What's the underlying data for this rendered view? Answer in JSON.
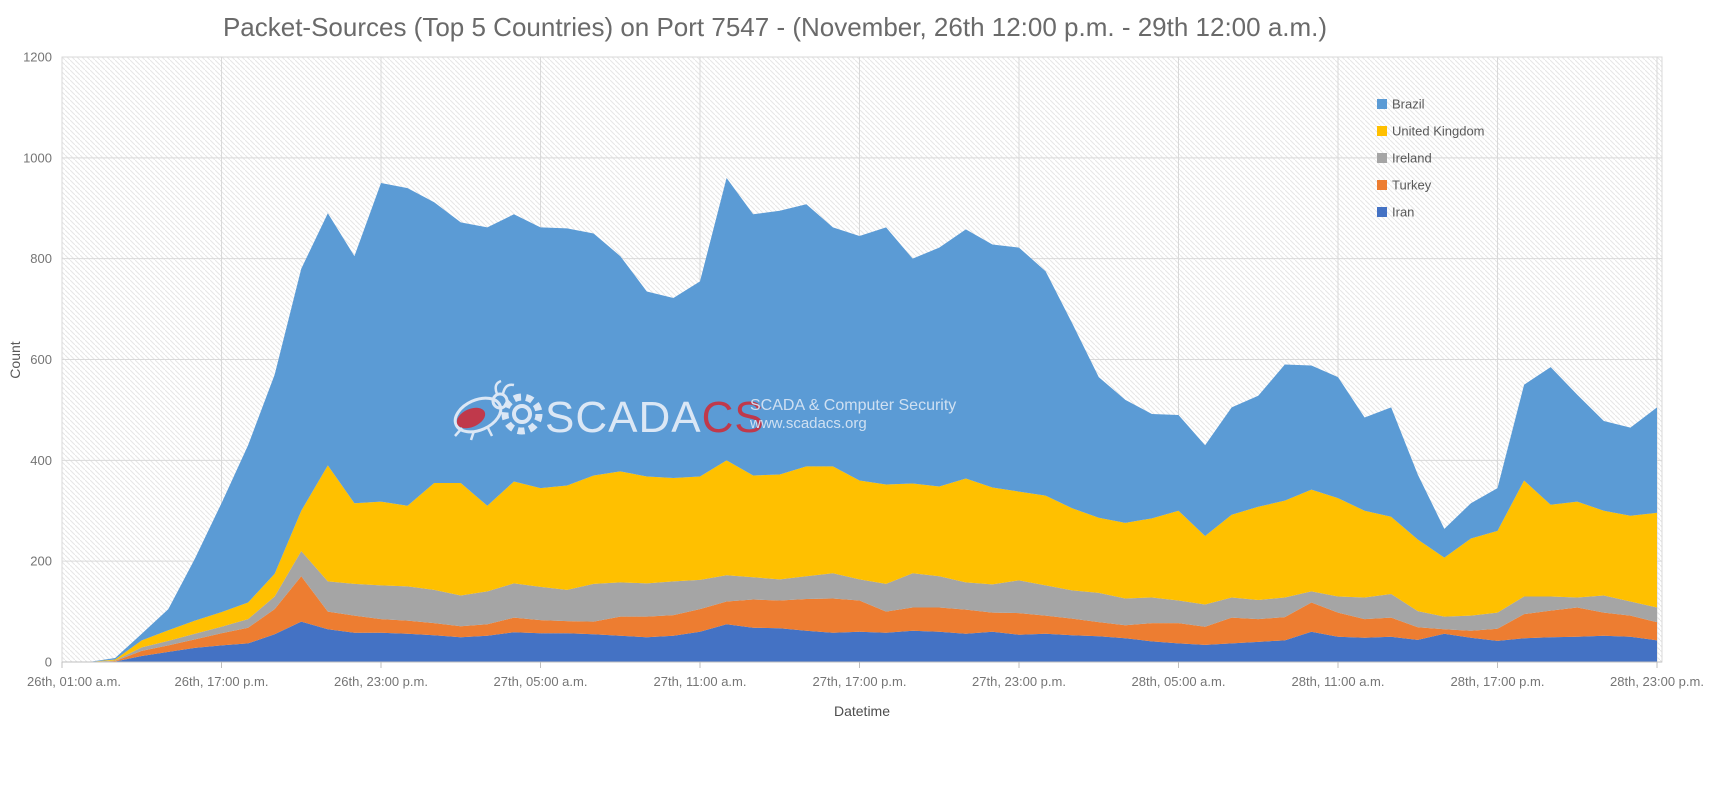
{
  "chart_data": {
    "type": "area",
    "stacked": true,
    "title": "Packet-Sources (Top 5 Countries) on Port 7547 -  (November, 26th 12:00 p.m. - 29th 12:00 a.m.)",
    "xlabel": "Datetime",
    "ylabel": "Count",
    "ylim": [
      0,
      1200
    ],
    "yticks": [
      0,
      200,
      400,
      600,
      800,
      1000,
      1200
    ],
    "grid": true,
    "plot_background": "diagonal-hatch",
    "x_tick_labels": [
      "26th, 01:00 a.m.",
      "26th, 17:00 p.m.",
      "26th, 23:00 p.m.",
      "27th, 05:00 a.m.",
      "27th, 11:00 a.m.",
      "27th, 17:00 p.m.",
      "27th, 23:00 p.m.",
      "28th, 05:00 a.m.",
      "28th, 11:00 a.m.",
      "28th, 17:00 p.m.",
      "28th, 23:00 p.m."
    ],
    "x_tick_indices": [
      0,
      6,
      12,
      18,
      24,
      30,
      36,
      42,
      48,
      54,
      60
    ],
    "legend": {
      "position": "inside-top-right",
      "entries": [
        {
          "label": "Brazil",
          "color": "#5B9BD5"
        },
        {
          "label": "United Kingdom",
          "color": "#FFC000"
        },
        {
          "label": "Ireland",
          "color": "#A5A5A5"
        },
        {
          "label": "Turkey",
          "color": "#ED7D31"
        },
        {
          "label": "Iran",
          "color": "#4472C4"
        }
      ]
    },
    "series": [
      {
        "name": "Iran",
        "color": "#4472C4",
        "values": [
          0,
          0,
          1,
          12,
          20,
          28,
          33,
          37,
          55,
          80,
          65,
          58,
          58,
          56,
          53,
          49,
          52,
          59,
          57,
          57,
          55,
          52,
          49,
          52,
          60,
          75,
          68,
          67,
          62,
          58,
          60,
          58,
          62,
          60,
          56,
          60,
          54,
          56,
          53,
          51,
          47,
          41,
          37,
          34,
          37,
          40,
          43,
          60,
          50,
          48,
          50,
          44,
          56,
          48,
          42,
          47,
          49,
          50,
          52,
          50,
          43
        ]
      },
      {
        "name": "Turkey",
        "color": "#ED7D31",
        "values": [
          0,
          0,
          1,
          10,
          13,
          17,
          24,
          31,
          50,
          90,
          35,
          34,
          27,
          26,
          24,
          22,
          23,
          29,
          26,
          24,
          25,
          38,
          41,
          41,
          45,
          45,
          56,
          55,
          63,
          68,
          62,
          42,
          46,
          48,
          48,
          38,
          43,
          36,
          33,
          28,
          26,
          36,
          40,
          36,
          51,
          45,
          46,
          58,
          48,
          37,
          38,
          25,
          9,
          14,
          24,
          48,
          53,
          58,
          46,
          42,
          36
        ]
      },
      {
        "name": "Ireland",
        "color": "#A5A5A5",
        "values": [
          0,
          0,
          1,
          7,
          9,
          11,
          13,
          17,
          25,
          50,
          60,
          63,
          67,
          68,
          66,
          61,
          65,
          68,
          66,
          62,
          75,
          68,
          66,
          67,
          58,
          52,
          44,
          42,
          45,
          50,
          42,
          55,
          68,
          62,
          54,
          56,
          65,
          60,
          56,
          58,
          53,
          51,
          45,
          44,
          40,
          38,
          39,
          22,
          32,
          43,
          47,
          32,
          25,
          30,
          32,
          35,
          28,
          20,
          34,
          28,
          29
        ]
      },
      {
        "name": "United Kingdom",
        "color": "#FFC000",
        "values": [
          0,
          0,
          2,
          14,
          21,
          26,
          29,
          33,
          45,
          80,
          230,
          160,
          166,
          160,
          212,
          223,
          170,
          202,
          196,
          207,
          215,
          220,
          212,
          205,
          205,
          228,
          202,
          208,
          218,
          212,
          196,
          197,
          178,
          178,
          206,
          192,
          176,
          178,
          163,
          149,
          150,
          157,
          178,
          136,
          164,
          185,
          192,
          202,
          195,
          172,
          153,
          142,
          117,
          153,
          162,
          230,
          182,
          190,
          168,
          170,
          188
        ]
      },
      {
        "name": "Brazil",
        "color": "#5B9BD5",
        "values": [
          0,
          0,
          3,
          13,
          42,
          123,
          216,
          312,
          395,
          480,
          500,
          490,
          632,
          630,
          557,
          517,
          552,
          530,
          517,
          510,
          480,
          427,
          367,
          357,
          387,
          560,
          518,
          523,
          520,
          474,
          485,
          510,
          446,
          474,
          494,
          482,
          484,
          445,
          367,
          279,
          244,
          207,
          190,
          180,
          213,
          220,
          270,
          246,
          240,
          185,
          217,
          129,
          57,
          70,
          85,
          190,
          273,
          212,
          178,
          175,
          209
        ]
      }
    ],
    "watermark": {
      "brand_light": "SCADA",
      "brand_red": "CS",
      "tagline": "SCADA & Computer Security",
      "url": "www.scadacs.org",
      "light_color": "#dbe7f5",
      "red_color": "#c0394b"
    },
    "colors": {
      "title_text": "#6a6a6a",
      "axis_text": "#757575",
      "gridline": "#d9d9d9",
      "axis_line": "#bfbfbf",
      "hatch_line": "#e7e7e7"
    }
  }
}
